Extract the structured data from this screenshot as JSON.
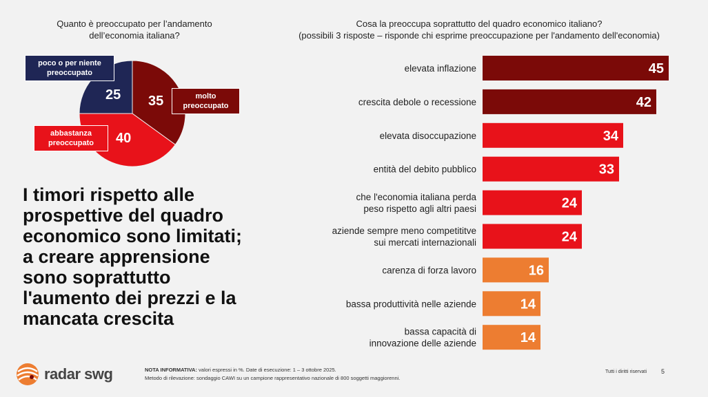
{
  "pie": {
    "title_line1": "Quanto è preoccupato per l’andamento",
    "title_line2": "dell’economia italiana?"
  },
  "bar": {
    "title_line1": "Cosa la preoccupa soprattutto del quadro economico italiano?",
    "title_line2": "(possibili 3 risposte – risponde chi esprime preoccupazione per l'andamento dell'economia)"
  },
  "headline": {
    "line1": "I timori rispetto alle",
    "line2": "prospettive del quadro",
    "line3": "economico sono limitati;",
    "line4": "a creare apprensione",
    "line5": "sono soprattutto",
    "line6": "l'aumento dei prezzi e la",
    "line7": "mancata crescita"
  },
  "footer": {
    "logo": "radar swg",
    "note_label": "NOTA INFORMATIVA:",
    "note_line1": " valori espressi in %. Date di esecuzione: 1 – 3 ottobre 2025.",
    "note_line2": "Metodo di rilevazione: sondaggio CAWI su un campione rappresentativo nazionale di 800 soggetti maggiorenni.",
    "rights": "Tutti i diritti riservati",
    "page": "5"
  },
  "colors": {
    "dark_red": "#7b0a08",
    "red": "#e8121a",
    "orange": "#ed7d31",
    "navy": "#1f2655"
  },
  "chart_data": [
    {
      "type": "pie",
      "title": "Quanto è preoccupato per l’andamento dell’economia italiana?",
      "slices": [
        {
          "label_line1": "molto",
          "label_line2": "preoccupato",
          "value": 35,
          "color": "#7b0a08"
        },
        {
          "label_line1": "abbastanza",
          "label_line2": "preoccupato",
          "value": 40,
          "color": "#e8121a"
        },
        {
          "label_line1": "poco o per niente",
          "label_line2": "preoccupato",
          "value": 25,
          "color": "#1f2655"
        }
      ]
    },
    {
      "type": "bar",
      "orientation": "horizontal",
      "title": "Cosa la preoccupa soprattutto del quadro economico italiano?",
      "subtitle": "(possibili 3 risposte – risponde chi esprime preoccupazione per l'andamento dell'economia)",
      "xlim": [
        0,
        45
      ],
      "items": [
        {
          "label": [
            "elevata inflazione"
          ],
          "value": 45,
          "color": "#7b0a08"
        },
        {
          "label": [
            "crescita debole o recessione"
          ],
          "value": 42,
          "color": "#7b0a08"
        },
        {
          "label": [
            "elevata disoccupazione"
          ],
          "value": 34,
          "color": "#e8121a"
        },
        {
          "label": [
            "entità del debito pubblico"
          ],
          "value": 33,
          "color": "#e8121a"
        },
        {
          "label": [
            "che l'economia italiana perda",
            "peso rispetto agli altri paesi"
          ],
          "value": 24,
          "color": "#e8121a"
        },
        {
          "label": [
            "aziende sempre meno competititve",
            "sui mercati internazionali"
          ],
          "value": 24,
          "color": "#e8121a"
        },
        {
          "label": [
            "carenza di forza lavoro"
          ],
          "value": 16,
          "color": "#ed7d31"
        },
        {
          "label": [
            "bassa produttività nelle aziende"
          ],
          "value": 14,
          "color": "#ed7d31"
        },
        {
          "label": [
            "bassa capacità di",
            "innovazione delle aziende"
          ],
          "value": 14,
          "color": "#ed7d31"
        }
      ]
    }
  ]
}
